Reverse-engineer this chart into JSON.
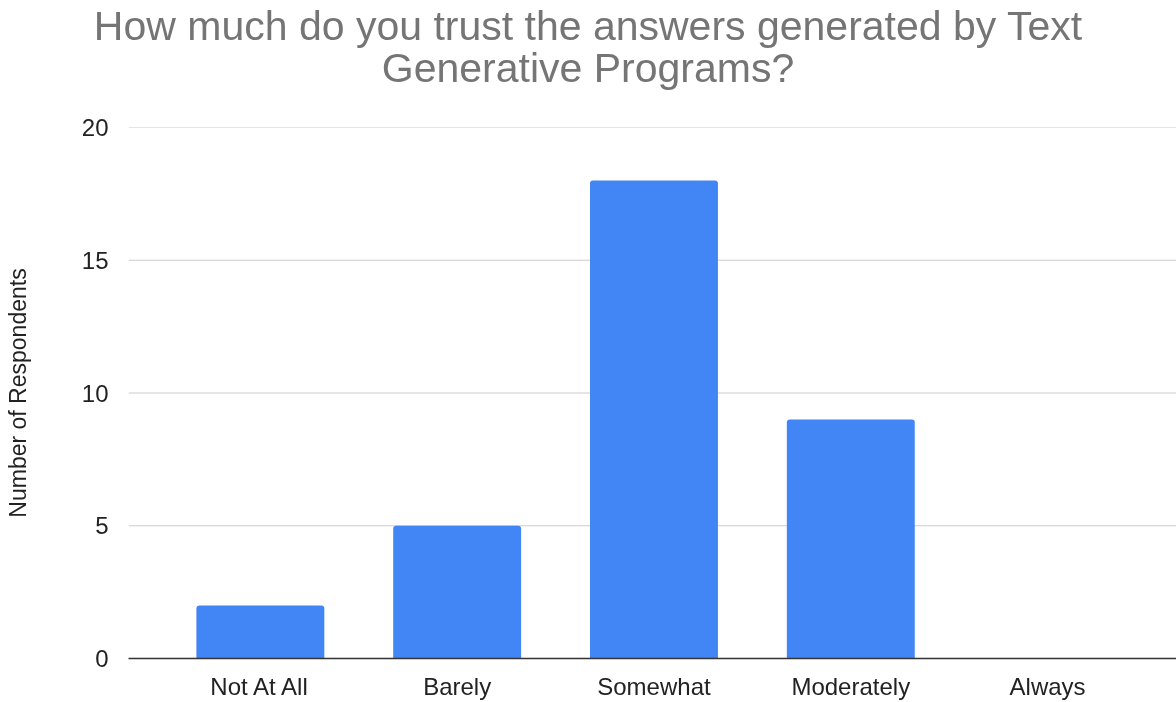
{
  "chart_data": {
    "type": "bar",
    "title": "How much do you trust the answers generated by Text Generative Programs?",
    "ylabel": "Number of Respondents",
    "categories": [
      "Not At All",
      "Barely",
      "Somewhat",
      "Moderately",
      "Always"
    ],
    "values": [
      2,
      5,
      18,
      9,
      0
    ],
    "color": "#4285f4",
    "ylim": [
      0,
      20
    ],
    "yticks": [
      0,
      5,
      10,
      15,
      20
    ],
    "grid": "y"
  }
}
